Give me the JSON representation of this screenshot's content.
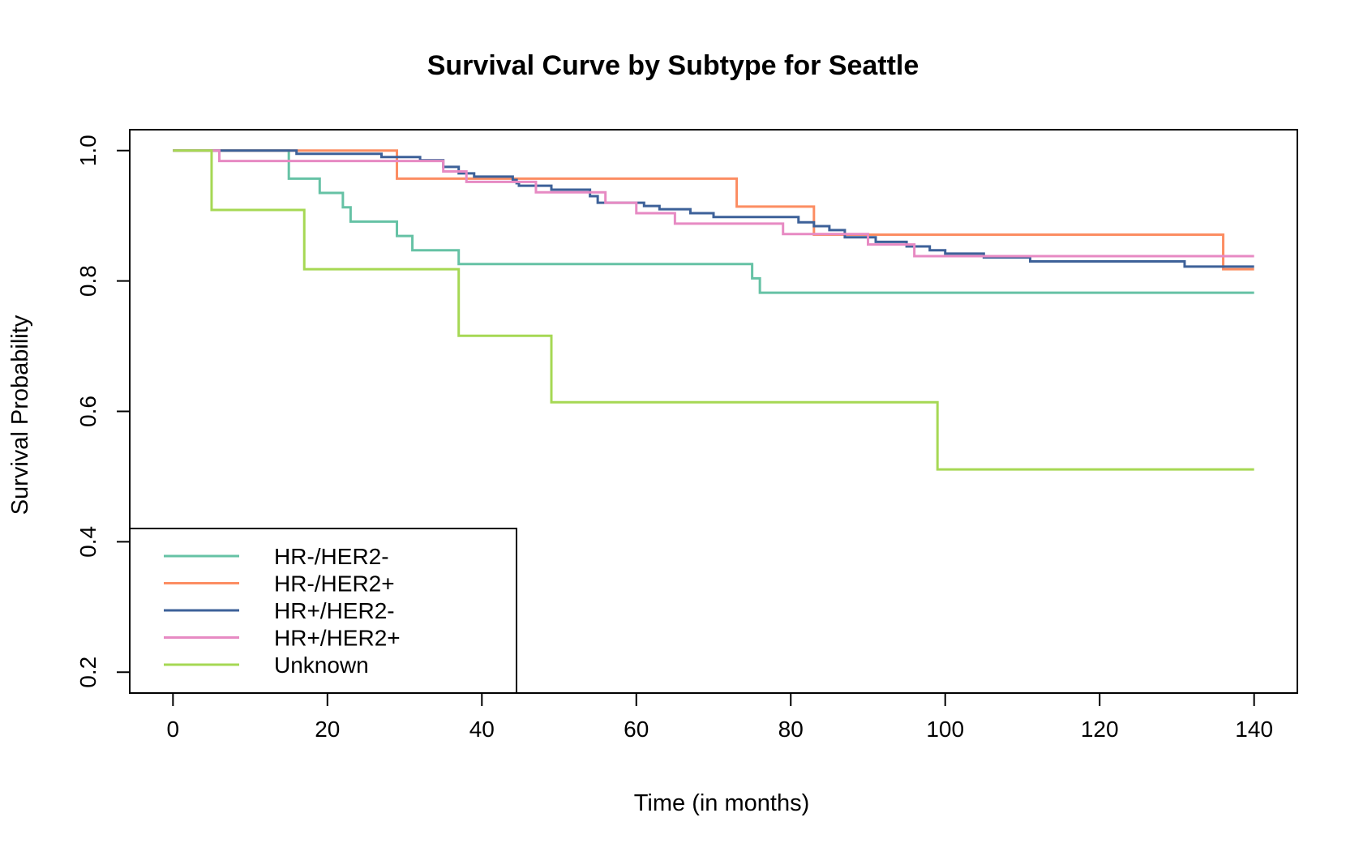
{
  "chart_data": {
    "type": "line",
    "step": true,
    "title": "Survival Curve by Subtype for Seattle",
    "xlabel": "Time (in months)",
    "ylabel": "Survival Probability",
    "xlim": [
      -5.6,
      145.6
    ],
    "ylim": [
      0.168,
      1.032
    ],
    "xticks": [
      0,
      20,
      40,
      60,
      80,
      100,
      120,
      140
    ],
    "xtick_labels": [
      "0",
      "20",
      "40",
      "60",
      "80",
      "100",
      "120",
      "140"
    ],
    "yticks": [
      0.2,
      0.4,
      0.6,
      0.8,
      1.0
    ],
    "ytick_labels": [
      "0.2",
      "0.4",
      "0.6",
      "0.8",
      "1.0"
    ],
    "grid": false,
    "legend_position": "bottom-left",
    "series": [
      {
        "name": "HR-/HER2-",
        "color": "#66c2a5",
        "points": [
          [
            0,
            1.0
          ],
          [
            15,
            0.957
          ],
          [
            19,
            0.935
          ],
          [
            22,
            0.913
          ],
          [
            23,
            0.891
          ],
          [
            29,
            0.869
          ],
          [
            31,
            0.847
          ],
          [
            37,
            0.826
          ],
          [
            75,
            0.804
          ],
          [
            76,
            0.782
          ],
          [
            140,
            0.782
          ]
        ]
      },
      {
        "name": "HR-/HER2+",
        "color": "#fc8d62",
        "points": [
          [
            0,
            1.0
          ],
          [
            29,
            0.957
          ],
          [
            47,
            0.957
          ],
          [
            73,
            0.914
          ],
          [
            83,
            0.871
          ],
          [
            136,
            0.818
          ],
          [
            140,
            0.818
          ]
        ]
      },
      {
        "name": "HR+/HER2-",
        "color": "#3d6199",
        "points": [
          [
            0,
            1.0
          ],
          [
            16,
            0.995
          ],
          [
            27,
            0.99
          ],
          [
            32,
            0.985
          ],
          [
            35,
            0.975
          ],
          [
            37,
            0.965
          ],
          [
            39,
            0.96
          ],
          [
            44,
            0.955
          ],
          [
            44.5,
            0.95
          ],
          [
            44.8,
            0.946
          ],
          [
            49,
            0.94
          ],
          [
            54,
            0.93
          ],
          [
            55,
            0.92
          ],
          [
            60,
            0.92
          ],
          [
            61,
            0.915
          ],
          [
            63,
            0.91
          ],
          [
            67,
            0.904
          ],
          [
            70,
            0.898
          ],
          [
            81,
            0.89
          ],
          [
            83,
            0.884
          ],
          [
            85,
            0.878
          ],
          [
            87,
            0.867
          ],
          [
            91,
            0.86
          ],
          [
            95,
            0.853
          ],
          [
            98,
            0.847
          ],
          [
            100,
            0.842
          ],
          [
            105,
            0.836
          ],
          [
            111,
            0.83
          ],
          [
            131,
            0.822
          ],
          [
            140,
            0.822
          ]
        ]
      },
      {
        "name": "HR+/HER2+",
        "color": "#e78ac3",
        "points": [
          [
            0,
            1.0
          ],
          [
            6,
            0.984
          ],
          [
            35,
            0.968
          ],
          [
            38,
            0.952
          ],
          [
            47,
            0.936
          ],
          [
            56,
            0.92
          ],
          [
            60,
            0.904
          ],
          [
            65,
            0.888
          ],
          [
            79,
            0.872
          ],
          [
            90,
            0.856
          ],
          [
            96,
            0.838
          ],
          [
            140,
            0.838
          ]
        ]
      },
      {
        "name": "Unknown",
        "color": "#a6d854",
        "points": [
          [
            0,
            1.0
          ],
          [
            5,
            0.909
          ],
          [
            17,
            0.818
          ],
          [
            37,
            0.716
          ],
          [
            49,
            0.614
          ],
          [
            99,
            0.511
          ],
          [
            140,
            0.511
          ]
        ]
      }
    ]
  }
}
